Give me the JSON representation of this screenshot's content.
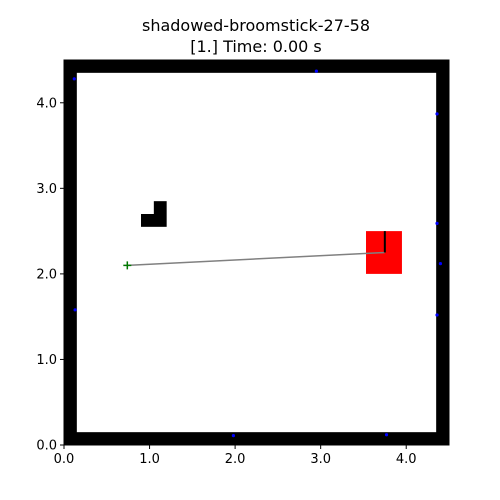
{
  "chart_data": {
    "type": "scatter",
    "title_line1": "shadowed-broomstick-27-58",
    "title_line2": "[1.] Time: 0.00 s",
    "xlim": [
      0.0,
      4.5
    ],
    "ylim": [
      0.0,
      4.5
    ],
    "x_ticks": [
      0.0,
      1.0,
      2.0,
      3.0,
      4.0
    ],
    "y_ticks": [
      0.0,
      1.0,
      2.0,
      3.0,
      4.0
    ],
    "x_tick_labels": [
      "0.0",
      "1.0",
      "2.0",
      "3.0",
      "4.0"
    ],
    "y_tick_labels": [
      "0.0",
      "1.0",
      "2.0",
      "3.0",
      "4.0"
    ],
    "grid": false,
    "walls": [
      {
        "x0": 0.0,
        "x1": 0.15,
        "y0": 0.0,
        "y1": 4.5
      },
      {
        "x0": 4.35,
        "x1": 4.5,
        "y0": 0.0,
        "y1": 4.5
      },
      {
        "x0": 0.0,
        "x1": 4.5,
        "y0": 0.0,
        "y1": 0.15
      },
      {
        "x0": 0.0,
        "x1": 4.5,
        "y0": 4.35,
        "y1": 4.5
      }
    ],
    "obstacle_rects": [
      {
        "x0": 0.9,
        "x1": 1.2,
        "y0": 2.55,
        "y1": 2.7
      },
      {
        "x0": 1.05,
        "x1": 1.2,
        "y0": 2.7,
        "y1": 2.85
      }
    ],
    "goal_square": {
      "x0": 3.53,
      "x1": 3.95,
      "y0": 2.0,
      "y1": 2.5,
      "color": "#ff0000"
    },
    "path_line": {
      "from": [
        0.74,
        2.1
      ],
      "to": [
        3.75,
        2.25
      ],
      "color": "#808080"
    },
    "heading_line": {
      "from": [
        3.75,
        2.25
      ],
      "to": [
        3.75,
        2.5
      ],
      "color": "#000000"
    },
    "start_marker": {
      "x": 0.74,
      "y": 2.1,
      "color": "#007700",
      "symbol": "+"
    },
    "blue_points": [
      {
        "x": 0.12,
        "y": 4.28
      },
      {
        "x": 2.95,
        "y": 4.37
      },
      {
        "x": 4.36,
        "y": 3.87
      },
      {
        "x": 4.36,
        "y": 2.59
      },
      {
        "x": 4.4,
        "y": 2.12
      },
      {
        "x": 4.36,
        "y": 1.52
      },
      {
        "x": 0.13,
        "y": 1.58
      },
      {
        "x": 1.98,
        "y": 0.11
      },
      {
        "x": 3.77,
        "y": 0.12
      }
    ],
    "colors": {
      "walls": "#000000",
      "points": "#0000ff"
    }
  }
}
